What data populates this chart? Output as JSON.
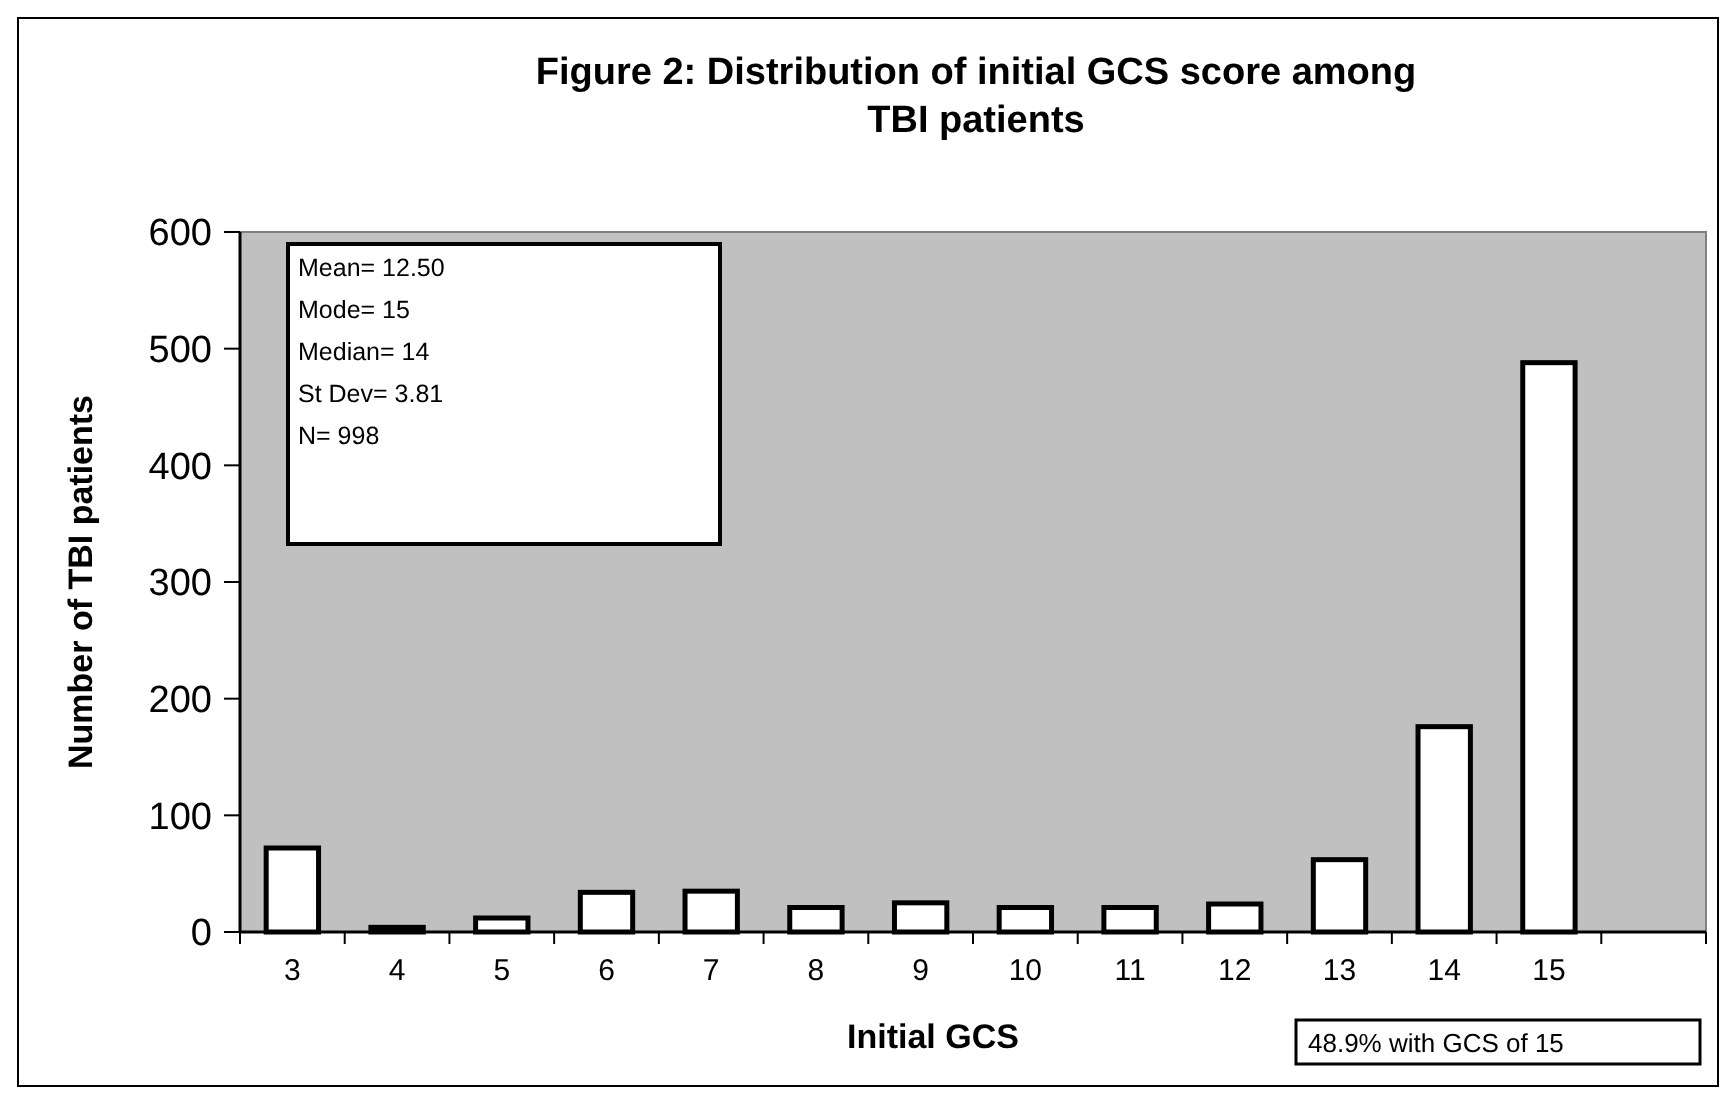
{
  "chart_data": {
    "type": "bar",
    "title": "Figure 2: Distribution of initial GCS score among TBI patients",
    "xlabel": "Initial GCS",
    "ylabel": "Number of TBI patients",
    "categories": [
      "3",
      "4",
      "5",
      "6",
      "7",
      "8",
      "9",
      "10",
      "11",
      "12",
      "13",
      "14",
      "15",
      null
    ],
    "values": [
      72,
      4,
      12,
      34,
      35,
      21,
      25,
      21,
      21,
      24,
      62,
      176,
      488,
      null
    ],
    "color": "#ffffff",
    "ylim": [
      0,
      600
    ],
    "yticks": [
      0,
      100,
      200,
      300,
      400,
      500,
      600
    ],
    "grid": false,
    "annotations": [
      "Mean= 12.50\nMode= 15\nMedian= 14\nSt Dev= 3.81\nN= 998",
      "48.9% with GCS of 15"
    ]
  }
}
